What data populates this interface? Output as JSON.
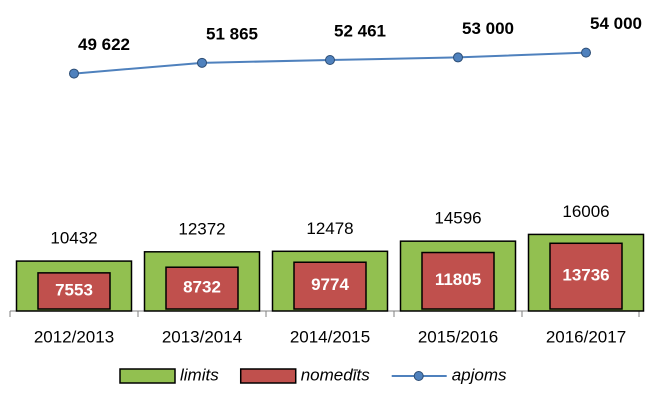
{
  "chart_data": {
    "type": "bar",
    "categories": [
      "2012/2013",
      "2013/2014",
      "2014/2015",
      "2015/2016",
      "2016/2017"
    ],
    "series": [
      {
        "name": "limits",
        "type": "bar",
        "color": "#92c050",
        "values": [
          10432,
          12372,
          12478,
          14596,
          16006
        ]
      },
      {
        "name": "nomedīts",
        "type": "bar",
        "color": "#c0504d",
        "values": [
          7553,
          8732,
          9774,
          11805,
          13736
        ]
      },
      {
        "name": "apjoms",
        "type": "line",
        "color": "#4f81bd",
        "values": [
          49622,
          51865,
          52461,
          53000,
          54000
        ],
        "value_labels": [
          "49 622",
          "51 865",
          "52 461",
          "53 000",
          "54 000"
        ]
      }
    ],
    "ylim": [
      0,
      65000
    ]
  }
}
